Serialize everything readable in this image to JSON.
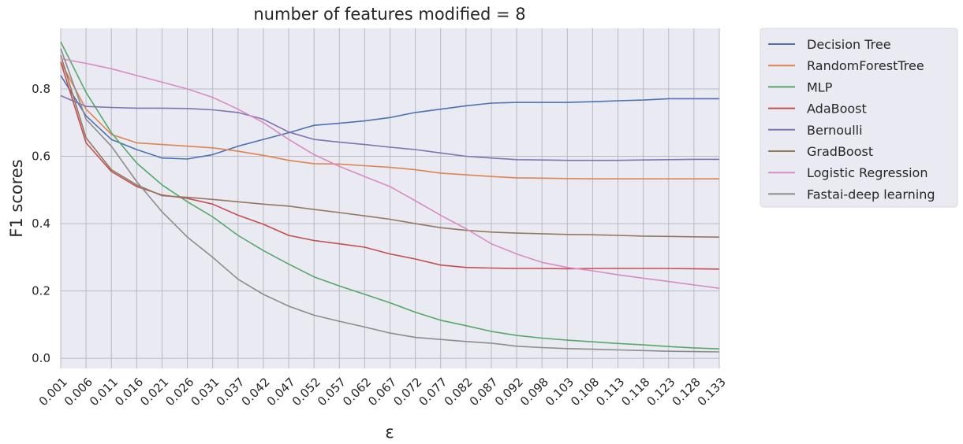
{
  "chart_data": {
    "type": "line",
    "title": "number of features modified = 8",
    "xlabel": "ε",
    "ylabel": "F1 scores",
    "categories": [
      "0.001",
      "0.006",
      "0.011",
      "0.016",
      "0.021",
      "0.026",
      "0.031",
      "0.037",
      "0.042",
      "0.047",
      "0.052",
      "0.057",
      "0.062",
      "0.067",
      "0.072",
      "0.077",
      "0.082",
      "0.087",
      "0.092",
      "0.098",
      "0.103",
      "0.108",
      "0.113",
      "0.118",
      "0.123",
      "0.128",
      "0.133"
    ],
    "ylim": [
      -0.03,
      0.98
    ],
    "yticks": [
      "0.0",
      "0.2",
      "0.4",
      "0.6",
      "0.8"
    ],
    "ytick_values": [
      0.0,
      0.2,
      0.4,
      0.6,
      0.8
    ],
    "grid": true,
    "legend_position": "outside-right",
    "series": [
      {
        "name": "Decision Tree",
        "color": "#4c72b0",
        "values": [
          0.84,
          0.72,
          0.65,
          0.62,
          0.595,
          0.592,
          0.605,
          0.63,
          0.65,
          0.67,
          0.692,
          0.698,
          0.705,
          0.715,
          0.73,
          0.74,
          0.75,
          0.758,
          0.76,
          0.76,
          0.76,
          0.762,
          0.765,
          0.767,
          0.771,
          0.771,
          0.771
        ]
      },
      {
        "name": "RandomForestTree",
        "color": "#dd8452",
        "values": [
          0.88,
          0.74,
          0.665,
          0.64,
          0.635,
          0.63,
          0.625,
          0.615,
          0.603,
          0.588,
          0.578,
          0.577,
          0.572,
          0.567,
          0.56,
          0.55,
          0.545,
          0.54,
          0.536,
          0.535,
          0.534,
          0.533,
          0.533,
          0.533,
          0.533,
          0.533,
          0.533
        ]
      },
      {
        "name": "MLP",
        "color": "#55a868",
        "values": [
          0.94,
          0.79,
          0.67,
          0.58,
          0.515,
          0.465,
          0.42,
          0.365,
          0.32,
          0.28,
          0.242,
          0.215,
          0.19,
          0.165,
          0.137,
          0.113,
          0.097,
          0.08,
          0.068,
          0.06,
          0.054,
          0.049,
          0.044,
          0.04,
          0.035,
          0.031,
          0.028
        ]
      },
      {
        "name": "AdaBoost",
        "color": "#c44e52",
        "values": [
          0.88,
          0.64,
          0.555,
          0.51,
          0.485,
          0.475,
          0.458,
          0.425,
          0.398,
          0.365,
          0.35,
          0.34,
          0.33,
          0.31,
          0.295,
          0.277,
          0.27,
          0.268,
          0.267,
          0.267,
          0.266,
          0.267,
          0.267,
          0.267,
          0.267,
          0.266,
          0.265
        ]
      },
      {
        "name": "Bernoulli",
        "color": "#8172b3",
        "values": [
          0.78,
          0.748,
          0.745,
          0.743,
          0.743,
          0.742,
          0.738,
          0.73,
          0.71,
          0.672,
          0.65,
          0.642,
          0.635,
          0.627,
          0.62,
          0.61,
          0.6,
          0.595,
          0.59,
          0.589,
          0.588,
          0.588,
          0.588,
          0.589,
          0.59,
          0.591,
          0.591
        ]
      },
      {
        "name": "GradBoost",
        "color": "#937860",
        "values": [
          0.9,
          0.655,
          0.56,
          0.515,
          0.483,
          0.478,
          0.472,
          0.465,
          0.458,
          0.452,
          0.442,
          0.433,
          0.423,
          0.413,
          0.4,
          0.388,
          0.38,
          0.375,
          0.372,
          0.37,
          0.368,
          0.367,
          0.365,
          0.363,
          0.362,
          0.361,
          0.36
        ]
      },
      {
        "name": "Logistic Regression",
        "color": "#da8bc3",
        "values": [
          0.89,
          0.876,
          0.86,
          0.84,
          0.82,
          0.8,
          0.775,
          0.74,
          0.7,
          0.65,
          0.605,
          0.57,
          0.54,
          0.51,
          0.468,
          0.425,
          0.385,
          0.34,
          0.31,
          0.285,
          0.27,
          0.26,
          0.248,
          0.238,
          0.228,
          0.218,
          0.208
        ]
      },
      {
        "name": "Fastai-deep learning",
        "color": "#8c8c8c",
        "values": [
          0.92,
          0.71,
          0.63,
          0.525,
          0.435,
          0.36,
          0.3,
          0.235,
          0.19,
          0.155,
          0.128,
          0.11,
          0.093,
          0.075,
          0.062,
          0.056,
          0.05,
          0.045,
          0.036,
          0.032,
          0.029,
          0.027,
          0.025,
          0.023,
          0.021,
          0.02,
          0.019
        ]
      }
    ]
  }
}
